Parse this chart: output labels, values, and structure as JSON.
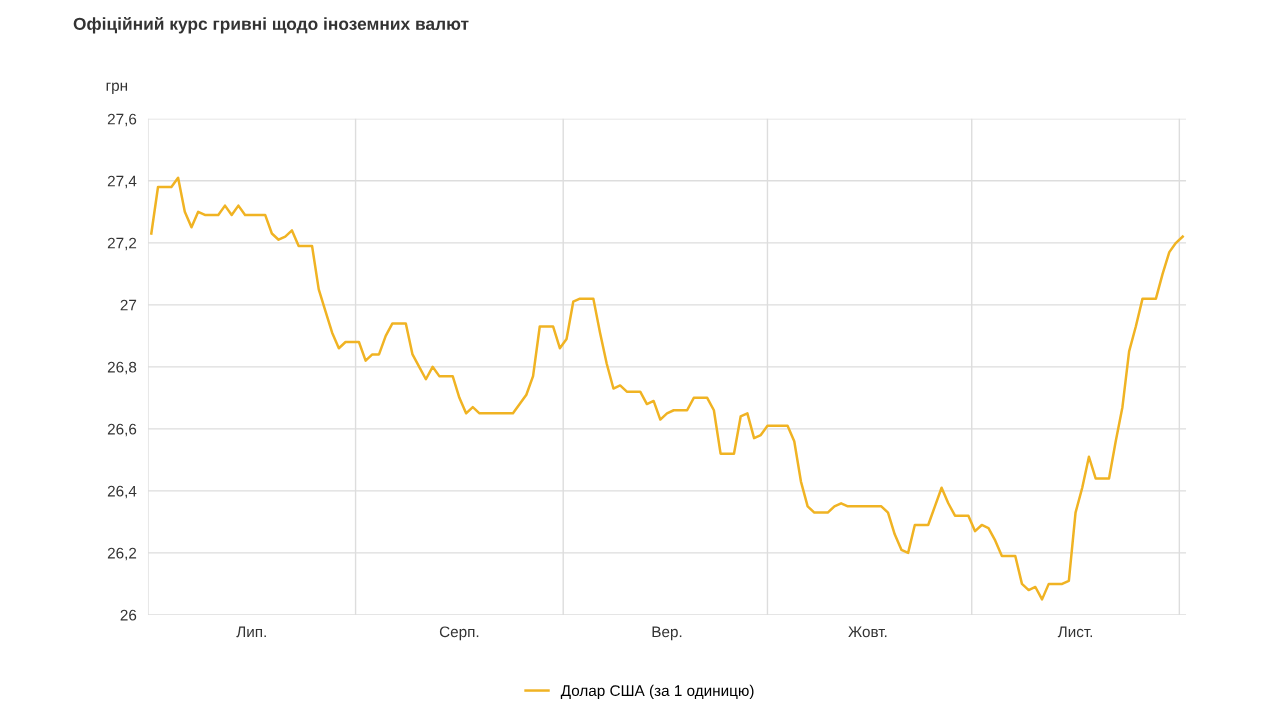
{
  "chart_data": {
    "type": "line",
    "title": "Офіційний курс гривні щодо іноземних валют",
    "ylabel": "грн",
    "categories": [
      null,
      null,
      null,
      null,
      null,
      null,
      null,
      null,
      null,
      null,
      null,
      null,
      null,
      null,
      null,
      "Лип.",
      null,
      null,
      null,
      null,
      null,
      null,
      null,
      null,
      null,
      null,
      null,
      null,
      null,
      null,
      null,
      null,
      null,
      null,
      null,
      null,
      null,
      null,
      null,
      null,
      null,
      null,
      null,
      null,
      null,
      null,
      "Серп.",
      null,
      null,
      null,
      null,
      null,
      null,
      null,
      null,
      null,
      null,
      null,
      null,
      null,
      null,
      null,
      null,
      null,
      null,
      null,
      null,
      null,
      null,
      null,
      null,
      null,
      null,
      null,
      null,
      null,
      null,
      "Вер.",
      null,
      null,
      null,
      null,
      null,
      null,
      null,
      null,
      null,
      null,
      null,
      null,
      null,
      null,
      null,
      null,
      null,
      null,
      null,
      null,
      null,
      null,
      null,
      null,
      null,
      null,
      null,
      null,
      null,
      "Жовт.",
      null,
      null,
      null,
      null,
      null,
      null,
      null,
      null,
      null,
      null,
      null,
      null,
      null,
      null,
      null,
      null,
      null,
      null,
      null,
      null,
      null,
      null,
      null,
      null,
      null,
      null,
      null,
      null,
      null,
      null,
      "Лист.",
      null,
      null,
      null,
      null,
      null,
      null,
      null,
      null,
      null,
      null,
      null,
      null,
      null,
      null,
      null,
      null
    ],
    "series": [
      {
        "name": "Долар США (за 1 одиницю)",
        "color": "#f0b323",
        "values": [
          27.23,
          27.38,
          27.38,
          27.38,
          27.41,
          27.3,
          27.25,
          27.3,
          27.29,
          27.29,
          27.29,
          27.32,
          27.29,
          27.32,
          27.29,
          27.29,
          27.29,
          27.29,
          27.23,
          27.21,
          27.22,
          27.24,
          27.19,
          27.19,
          27.19,
          27.05,
          26.98,
          26.91,
          26.86,
          26.88,
          26.88,
          26.88,
          26.82,
          26.84,
          26.84,
          26.9,
          26.94,
          26.94,
          26.94,
          26.84,
          26.8,
          26.76,
          26.8,
          26.77,
          26.77,
          26.77,
          26.7,
          26.65,
          26.67,
          26.65,
          26.65,
          26.65,
          26.65,
          26.65,
          26.65,
          26.68,
          26.71,
          26.77,
          26.93,
          26.93,
          26.93,
          26.86,
          26.89,
          27.01,
          27.02,
          27.02,
          27.02,
          26.91,
          26.81,
          26.73,
          26.74,
          26.72,
          26.72,
          26.72,
          26.68,
          26.69,
          26.63,
          26.65,
          26.66,
          26.66,
          26.66,
          26.7,
          26.7,
          26.7,
          26.66,
          26.52,
          26.52,
          26.52,
          26.64,
          26.65,
          26.57,
          26.58,
          26.61,
          26.61,
          26.61,
          26.61,
          26.56,
          26.43,
          26.35,
          26.33,
          26.33,
          26.33,
          26.35,
          26.36,
          26.35,
          26.35,
          26.35,
          26.35,
          26.35,
          26.35,
          26.33,
          26.26,
          26.21,
          26.2,
          26.29,
          26.29,
          26.29,
          26.35,
          26.41,
          26.36,
          26.32,
          26.32,
          26.32,
          26.27,
          26.29,
          26.28,
          26.24,
          26.19,
          26.19,
          26.19,
          26.1,
          26.08,
          26.09,
          26.05,
          26.1,
          26.1,
          26.1,
          26.11,
          26.33,
          26.41,
          26.51,
          26.44,
          26.44,
          26.44,
          26.56,
          26.67,
          26.85,
          26.93,
          27.02,
          27.02,
          27.02,
          27.1,
          27.17,
          27.2,
          27.22
        ]
      }
    ],
    "ylim": [
      26,
      27.6
    ],
    "yticks": [
      {
        "value": 26,
        "label": "26"
      },
      {
        "value": 26.2,
        "label": "26,2"
      },
      {
        "value": 26.4,
        "label": "26,4"
      },
      {
        "value": 26.6,
        "label": "26,6"
      },
      {
        "value": 26.8,
        "label": "26,8"
      },
      {
        "value": 27,
        "label": "27"
      },
      {
        "value": 27.2,
        "label": "27,2"
      },
      {
        "value": 27.4,
        "label": "27,4"
      },
      {
        "value": 27.6,
        "label": "27,6"
      }
    ],
    "grid": true,
    "legend": "bottom",
    "marker": "none",
    "line_style": "solid"
  }
}
